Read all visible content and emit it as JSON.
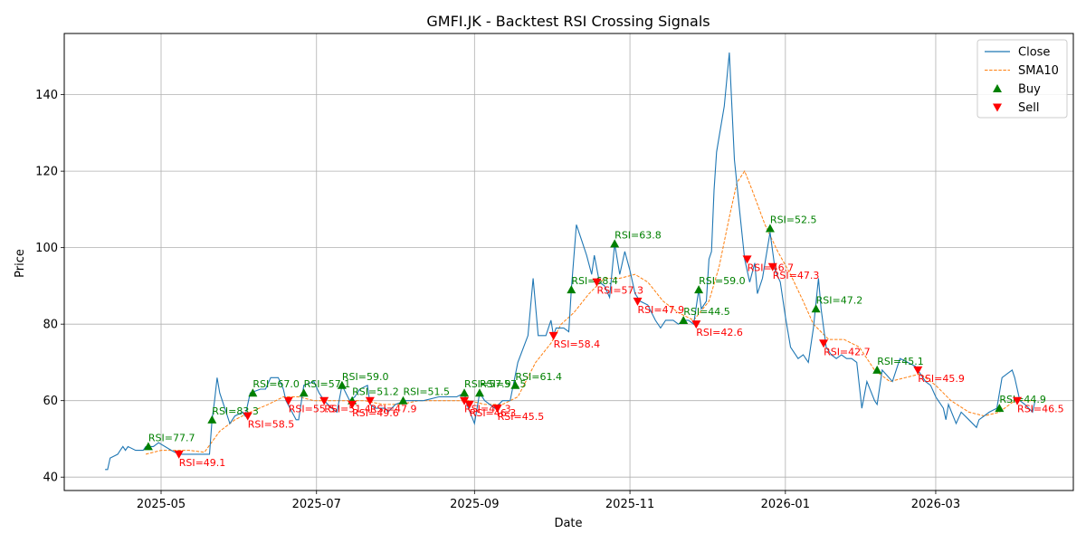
{
  "chart_data": {
    "type": "line",
    "title": "GMFI.JK - Backtest RSI Crossing Signals",
    "xlabel": "Date",
    "ylabel": "Price",
    "xlim": [
      "2025-03-24",
      "2026-04-24"
    ],
    "ylim": [
      36.5,
      156
    ],
    "x_ticks": [
      {
        "date": "2025-05-01",
        "label": "2025-05"
      },
      {
        "date": "2025-07-01",
        "label": "2025-07"
      },
      {
        "date": "2025-09-01",
        "label": "2025-09"
      },
      {
        "date": "2025-11-01",
        "label": "2025-11"
      },
      {
        "date": "2026-01-01",
        "label": "2026-01"
      },
      {
        "date": "2026-03-01",
        "label": "2026-03"
      }
    ],
    "y_ticks": [
      40,
      60,
      80,
      100,
      120,
      140
    ],
    "grid": true,
    "legend_position": "top-right",
    "legend": [
      "Close",
      "SMA10",
      "Buy",
      "Sell"
    ],
    "colors": {
      "close": "#1f77b4",
      "sma": "#ff7f0e",
      "buy": "#008000",
      "sell": "#ff0000"
    },
    "close": [
      [
        "2025-04-09",
        42
      ],
      [
        "2025-04-10",
        42
      ],
      [
        "2025-04-11",
        45
      ],
      [
        "2025-04-14",
        46
      ],
      [
        "2025-04-15",
        47
      ],
      [
        "2025-04-16",
        48
      ],
      [
        "2025-04-17",
        47
      ],
      [
        "2025-04-18",
        48
      ],
      [
        "2025-04-21",
        47
      ],
      [
        "2025-04-24",
        47
      ],
      [
        "2025-04-25",
        48
      ],
      [
        "2025-04-28",
        48
      ],
      [
        "2025-04-30",
        49
      ],
      [
        "2025-05-05",
        47
      ],
      [
        "2025-05-08",
        46
      ],
      [
        "2025-05-12",
        46
      ],
      [
        "2025-05-16",
        46
      ],
      [
        "2025-05-20",
        46
      ],
      [
        "2025-05-21",
        55
      ],
      [
        "2025-05-22",
        60
      ],
      [
        "2025-05-23",
        66
      ],
      [
        "2025-05-24",
        62
      ],
      [
        "2025-05-26",
        58
      ],
      [
        "2025-05-28",
        54
      ],
      [
        "2025-05-30",
        56
      ],
      [
        "2025-06-02",
        57
      ],
      [
        "2025-06-03",
        56
      ],
      [
        "2025-06-05",
        62
      ],
      [
        "2025-06-09",
        63
      ],
      [
        "2025-06-11",
        63
      ],
      [
        "2025-06-13",
        66
      ],
      [
        "2025-06-16",
        66
      ],
      [
        "2025-06-18",
        63
      ],
      [
        "2025-06-19",
        60
      ],
      [
        "2025-06-23",
        55
      ],
      [
        "2025-06-24",
        55
      ],
      [
        "2025-06-26",
        64
      ],
      [
        "2025-06-30",
        65
      ],
      [
        "2025-07-02",
        62
      ],
      [
        "2025-07-04",
        60
      ],
      [
        "2025-07-07",
        58
      ],
      [
        "2025-07-09",
        57
      ],
      [
        "2025-07-11",
        64
      ],
      [
        "2025-07-14",
        60
      ],
      [
        "2025-07-16",
        61
      ],
      [
        "2025-07-18",
        63
      ],
      [
        "2025-07-21",
        64
      ],
      [
        "2025-07-22",
        59
      ],
      [
        "2025-07-24",
        58
      ],
      [
        "2025-07-28",
        58
      ],
      [
        "2025-07-29",
        57
      ],
      [
        "2025-08-01",
        59
      ],
      [
        "2025-08-05",
        60
      ],
      [
        "2025-08-12",
        60
      ],
      [
        "2025-08-18",
        61
      ],
      [
        "2025-08-25",
        61
      ],
      [
        "2025-08-28",
        62
      ],
      [
        "2025-08-29",
        59
      ],
      [
        "2025-09-01",
        54
      ],
      [
        "2025-09-03",
        62
      ],
      [
        "2025-09-05",
        60
      ],
      [
        "2025-09-09",
        58
      ],
      [
        "2025-09-12",
        60
      ],
      [
        "2025-09-15",
        60
      ],
      [
        "2025-09-18",
        70
      ],
      [
        "2025-09-22",
        77
      ],
      [
        "2025-09-24",
        92
      ],
      [
        "2025-09-26",
        77
      ],
      [
        "2025-09-29",
        77
      ],
      [
        "2025-10-01",
        81
      ],
      [
        "2025-10-02",
        77
      ],
      [
        "2025-10-03",
        79
      ],
      [
        "2025-10-06",
        79
      ],
      [
        "2025-10-08",
        78
      ],
      [
        "2025-10-09",
        89
      ],
      [
        "2025-10-11",
        106
      ],
      [
        "2025-10-13",
        102
      ],
      [
        "2025-10-15",
        98
      ],
      [
        "2025-10-17",
        93
      ],
      [
        "2025-10-18",
        98
      ],
      [
        "2025-10-20",
        91
      ],
      [
        "2025-10-22",
        90
      ],
      [
        "2025-10-24",
        87
      ],
      [
        "2025-10-26",
        101
      ],
      [
        "2025-10-28",
        93
      ],
      [
        "2025-10-30",
        99
      ],
      [
        "2025-11-01",
        94
      ],
      [
        "2025-11-03",
        88
      ],
      [
        "2025-11-05",
        86
      ],
      [
        "2025-11-08",
        85
      ],
      [
        "2025-11-11",
        81
      ],
      [
        "2025-11-13",
        79
      ],
      [
        "2025-11-15",
        81
      ],
      [
        "2025-11-18",
        81
      ],
      [
        "2025-11-20",
        80
      ],
      [
        "2025-11-22",
        81
      ],
      [
        "2025-11-24",
        81
      ],
      [
        "2025-11-26",
        80
      ],
      [
        "2025-11-28",
        89
      ],
      [
        "2025-11-29",
        84
      ],
      [
        "2025-12-01",
        86
      ],
      [
        "2025-12-02",
        97
      ],
      [
        "2025-12-03",
        99
      ],
      [
        "2025-12-04",
        115
      ],
      [
        "2025-12-05",
        125
      ],
      [
        "2025-12-06",
        129
      ],
      [
        "2025-12-08",
        137
      ],
      [
        "2025-12-10",
        151
      ],
      [
        "2025-12-12",
        123
      ],
      [
        "2025-12-14",
        110
      ],
      [
        "2025-12-16",
        97
      ],
      [
        "2025-12-18",
        91
      ],
      [
        "2025-12-20",
        96
      ],
      [
        "2025-12-21",
        88
      ],
      [
        "2025-12-23",
        92
      ],
      [
        "2025-12-26",
        104
      ],
      [
        "2025-12-28",
        94
      ],
      [
        "2025-12-30",
        91
      ],
      [
        "2026-01-01",
        82
      ],
      [
        "2026-01-03",
        74
      ],
      [
        "2026-01-06",
        71
      ],
      [
        "2026-01-08",
        72
      ],
      [
        "2026-01-10",
        70
      ],
      [
        "2026-01-12",
        79
      ],
      [
        "2026-01-14",
        92
      ],
      [
        "2026-01-15",
        84
      ],
      [
        "2026-01-17",
        74
      ],
      [
        "2026-01-19",
        72
      ],
      [
        "2026-01-21",
        71
      ],
      [
        "2026-01-23",
        72
      ],
      [
        "2026-01-25",
        71
      ],
      [
        "2026-01-27",
        71
      ],
      [
        "2026-01-29",
        70
      ],
      [
        "2026-01-31",
        58
      ],
      [
        "2026-02-02",
        65
      ],
      [
        "2026-02-05",
        60
      ],
      [
        "2026-02-06",
        59
      ],
      [
        "2026-02-08",
        68
      ],
      [
        "2026-02-12",
        65
      ],
      [
        "2026-02-15",
        71
      ],
      [
        "2026-02-18",
        70
      ],
      [
        "2026-02-21",
        69
      ],
      [
        "2026-02-25",
        65
      ],
      [
        "2026-02-27",
        64
      ],
      [
        "2026-03-01",
        61
      ],
      [
        "2026-03-04",
        58
      ],
      [
        "2026-03-05",
        55
      ],
      [
        "2026-03-06",
        59
      ],
      [
        "2026-03-09",
        54
      ],
      [
        "2026-03-11",
        57
      ],
      [
        "2026-03-14",
        55
      ],
      [
        "2026-03-17",
        53
      ],
      [
        "2026-03-18",
        55
      ],
      [
        "2026-03-22",
        57
      ],
      [
        "2026-03-25",
        58
      ],
      [
        "2026-03-27",
        66
      ],
      [
        "2026-03-29",
        67
      ],
      [
        "2026-03-31",
        68
      ],
      [
        "2026-04-01",
        66
      ],
      [
        "2026-04-03",
        60
      ],
      [
        "2026-04-05",
        59
      ],
      [
        "2026-04-08",
        57
      ],
      [
        "2026-04-09",
        60
      ]
    ],
    "sma10": [
      [
        "2025-04-25",
        46
      ],
      [
        "2025-05-01",
        47
      ],
      [
        "2025-05-06",
        47
      ],
      [
        "2025-05-12",
        47
      ],
      [
        "2025-05-18",
        46.5
      ],
      [
        "2025-05-24",
        52
      ],
      [
        "2025-05-30",
        55
      ],
      [
        "2025-06-05",
        57
      ],
      [
        "2025-06-12",
        59
      ],
      [
        "2025-06-18",
        61
      ],
      [
        "2025-06-24",
        61
      ],
      [
        "2025-06-30",
        60
      ],
      [
        "2025-07-06",
        60
      ],
      [
        "2025-07-13",
        60
      ],
      [
        "2025-07-20",
        60
      ],
      [
        "2025-07-27",
        59
      ],
      [
        "2025-08-03",
        59
      ],
      [
        "2025-08-10",
        60
      ],
      [
        "2025-08-17",
        60
      ],
      [
        "2025-08-24",
        60
      ],
      [
        "2025-08-30",
        60
      ],
      [
        "2025-09-05",
        59
      ],
      [
        "2025-09-12",
        59
      ],
      [
        "2025-09-18",
        61
      ],
      [
        "2025-09-25",
        70
      ],
      [
        "2025-10-01",
        75
      ],
      [
        "2025-10-05",
        80
      ],
      [
        "2025-10-10",
        83
      ],
      [
        "2025-10-16",
        88
      ],
      [
        "2025-10-22",
        92
      ],
      [
        "2025-10-28",
        92
      ],
      [
        "2025-11-03",
        93
      ],
      [
        "2025-11-08",
        91
      ],
      [
        "2025-11-14",
        86
      ],
      [
        "2025-11-20",
        83
      ],
      [
        "2025-11-26",
        81
      ],
      [
        "2025-12-02",
        86
      ],
      [
        "2025-12-06",
        95
      ],
      [
        "2025-12-10",
        108
      ],
      [
        "2025-12-13",
        117
      ],
      [
        "2025-12-16",
        120
      ],
      [
        "2025-12-19",
        115
      ],
      [
        "2025-12-24",
        106
      ],
      [
        "2025-12-29",
        99
      ],
      [
        "2026-01-03",
        93
      ],
      [
        "2026-01-08",
        86
      ],
      [
        "2026-01-12",
        80
      ],
      [
        "2026-01-18",
        76
      ],
      [
        "2026-01-24",
        76
      ],
      [
        "2026-01-30",
        74
      ],
      [
        "2026-02-05",
        68
      ],
      [
        "2026-02-11",
        65
      ],
      [
        "2026-02-17",
        66
      ],
      [
        "2026-02-23",
        67
      ],
      [
        "2026-03-01",
        64
      ],
      [
        "2026-03-07",
        60
      ],
      [
        "2026-03-14",
        57
      ],
      [
        "2026-03-20",
        56
      ],
      [
        "2026-03-26",
        57
      ],
      [
        "2026-04-01",
        60
      ],
      [
        "2026-04-09",
        60
      ]
    ],
    "buy_signals": [
      {
        "date": "2025-04-26",
        "price": 48,
        "label": "RSI=77.7"
      },
      {
        "date": "2025-05-21",
        "price": 55,
        "label": "RSI=83.3"
      },
      {
        "date": "2025-06-06",
        "price": 62,
        "label": "RSI=67.0"
      },
      {
        "date": "2025-06-26",
        "price": 62,
        "label": "RSI=57.1"
      },
      {
        "date": "2025-07-11",
        "price": 64,
        "label": "RSI=59.0"
      },
      {
        "date": "2025-07-15",
        "price": 60,
        "label": "RSI=51.2"
      },
      {
        "date": "2025-08-04",
        "price": 60,
        "label": "RSI=51.5"
      },
      {
        "date": "2025-08-28",
        "price": 62,
        "label": "RSI=57.9"
      },
      {
        "date": "2025-09-03",
        "price": 62,
        "label": "RSI=57.5"
      },
      {
        "date": "2025-09-17",
        "price": 64,
        "label": "RSI=61.4"
      },
      {
        "date": "2025-10-09",
        "price": 89,
        "label": "RSI=68.4"
      },
      {
        "date": "2025-10-26",
        "price": 101,
        "label": "RSI=63.8"
      },
      {
        "date": "2025-11-22",
        "price": 81,
        "label": "RSI=44.5"
      },
      {
        "date": "2025-11-28",
        "price": 89,
        "label": "RSI=59.0"
      },
      {
        "date": "2025-12-26",
        "price": 105,
        "label": "RSI=52.5"
      },
      {
        "date": "2026-01-13",
        "price": 84,
        "label": "RSI=47.2"
      },
      {
        "date": "2026-02-06",
        "price": 68,
        "label": "RSI=45.1"
      },
      {
        "date": "2026-03-26",
        "price": 58,
        "label": "RSI=44.9"
      }
    ],
    "sell_signals": [
      {
        "date": "2025-05-08",
        "price": 46,
        "label": "RSI=49.1"
      },
      {
        "date": "2025-06-04",
        "price": 56,
        "label": "RSI=58.5"
      },
      {
        "date": "2025-06-20",
        "price": 60,
        "label": "RSI=55.5"
      },
      {
        "date": "2025-07-04",
        "price": 60,
        "label": "RSI=51.4"
      },
      {
        "date": "2025-07-15",
        "price": 59,
        "label": "RSI=49.6"
      },
      {
        "date": "2025-07-22",
        "price": 60,
        "label": "RSI=47.9"
      },
      {
        "date": "2025-08-28",
        "price": 60,
        "label": "RSI=47.3"
      },
      {
        "date": "2025-08-30",
        "price": 59,
        "label": "RSI=46.3"
      },
      {
        "date": "2025-09-10",
        "price": 58,
        "label": "RSI=45.5"
      },
      {
        "date": "2025-10-02",
        "price": 77,
        "label": "RSI=58.4"
      },
      {
        "date": "2025-10-19",
        "price": 91,
        "label": "RSI=57.3"
      },
      {
        "date": "2025-11-04",
        "price": 86,
        "label": "RSI=47.9"
      },
      {
        "date": "2025-11-27",
        "price": 80,
        "label": "RSI=42.6"
      },
      {
        "date": "2025-12-17",
        "price": 97,
        "label": "RSI=46.7"
      },
      {
        "date": "2025-12-27",
        "price": 95,
        "label": "RSI=47.3"
      },
      {
        "date": "2026-01-16",
        "price": 75,
        "label": "RSI=42.7"
      },
      {
        "date": "2026-02-22",
        "price": 68,
        "label": "RSI=45.9"
      },
      {
        "date": "2026-04-02",
        "price": 60,
        "label": "RSI=46.5"
      }
    ]
  }
}
